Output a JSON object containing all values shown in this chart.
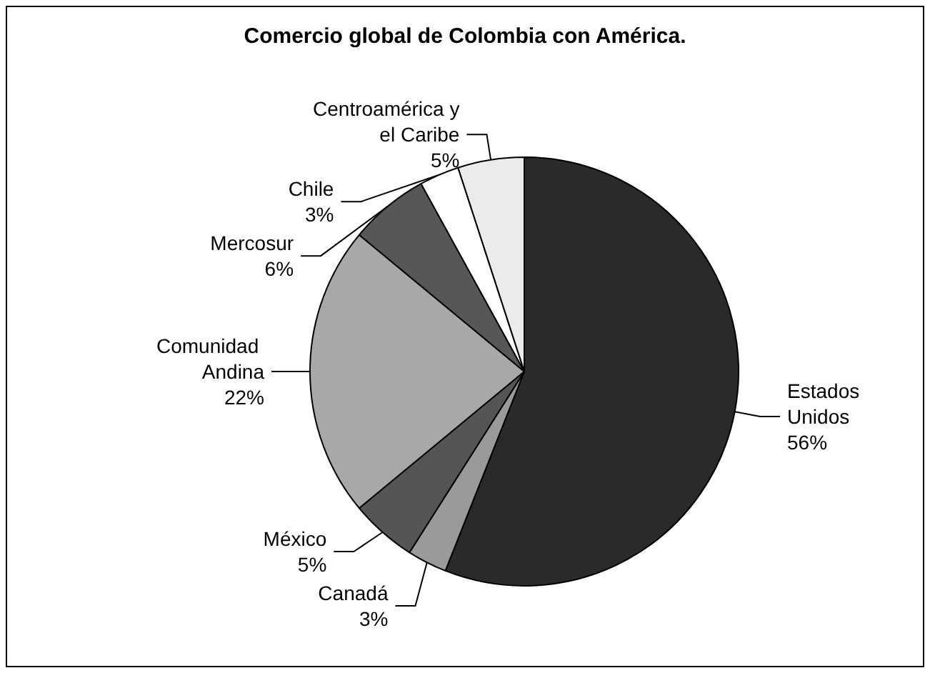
{
  "chart_data": {
    "type": "pie",
    "title": "Comercio global de Colombia con América.",
    "categories": [
      "Estados Unidos",
      "Canadá",
      "México",
      "Comunidad Andina",
      "Mercosur",
      "Chile",
      "Centroamérica y el Caribe"
    ],
    "values": [
      56,
      3,
      5,
      22,
      6,
      3,
      5
    ],
    "value_labels": [
      "56%",
      "3%",
      "5%",
      "22%",
      "6%",
      "3%",
      "5%"
    ],
    "colors": [
      "#2a2a2a",
      "#9a9a9a",
      "#555555",
      "#a8a8a8",
      "#575757",
      "#ffffff",
      "#ebebeb"
    ]
  }
}
